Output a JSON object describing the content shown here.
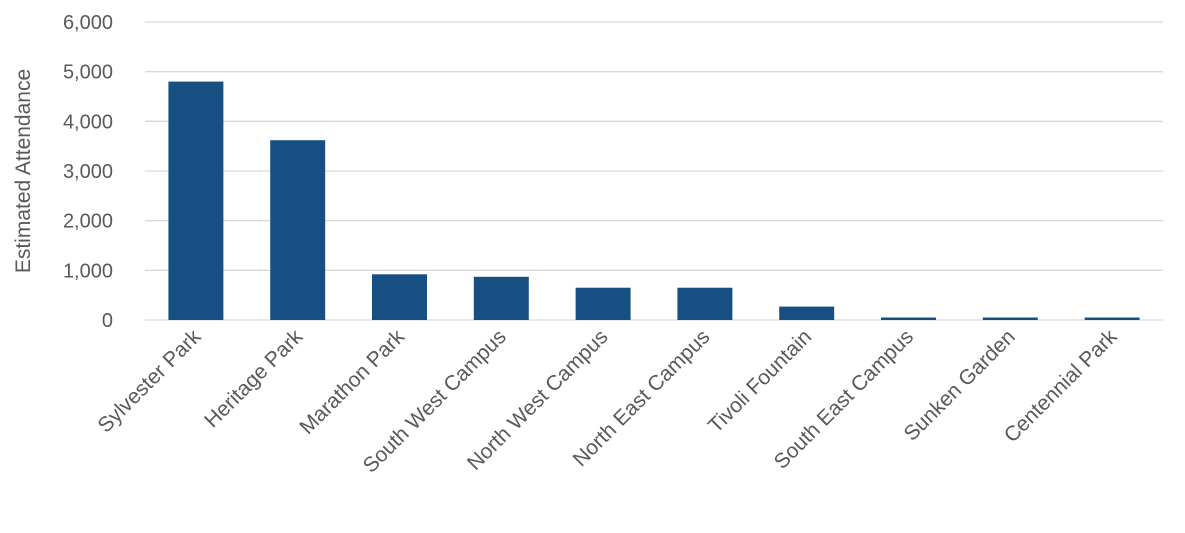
{
  "chart_data": {
    "type": "bar",
    "title": "",
    "xlabel": "",
    "ylabel": "Estimated Attendance",
    "ylim": [
      0,
      6000
    ],
    "yticks": [
      0,
      1000,
      2000,
      3000,
      4000,
      5000,
      6000
    ],
    "ytick_labels": [
      "0",
      "1,000",
      "2,000",
      "3,000",
      "4,000",
      "5,000",
      "6,000"
    ],
    "categories": [
      "Sylvester Park",
      "Heritage Park",
      "Marathon Park",
      "South West Campus",
      "North West Campus",
      "North East Campus",
      "Tivoli Fountain",
      "South East Campus",
      "Sunken Garden",
      "Centennial Park"
    ],
    "values": [
      4800,
      3620,
      920,
      870,
      650,
      650,
      270,
      50,
      50,
      50
    ],
    "grid": true,
    "legend": "none",
    "bar_color": "#174f82"
  }
}
